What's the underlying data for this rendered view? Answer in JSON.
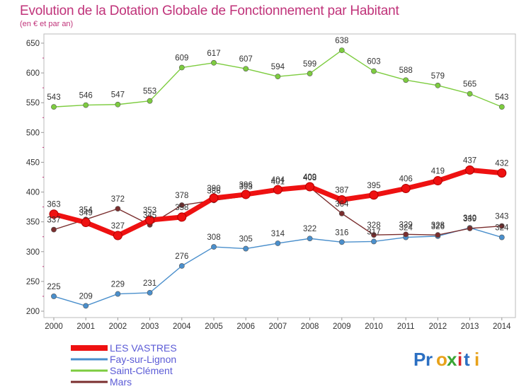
{
  "title": "Evolution de la Dotation Globale de Fonctionnement par Habitant",
  "subtitle": "(en € et par an)",
  "logo": "Proxiti",
  "chart_data": {
    "type": "line",
    "categories": [
      "2000",
      "2001",
      "2002",
      "2003",
      "2004",
      "2005",
      "2006",
      "2007",
      "2008",
      "2009",
      "2010",
      "2011",
      "2012",
      "2013",
      "2014"
    ],
    "ylim": [
      200,
      650
    ],
    "yticks": [
      200,
      250,
      300,
      350,
      400,
      450,
      500,
      550,
      600,
      650
    ],
    "grid": false,
    "legend_position": "bottom-left",
    "series": [
      {
        "name": "LES VASTRES",
        "color": "#ee1111",
        "highlight": true,
        "values": [
          363,
          349,
          327,
          353,
          358,
          390,
          396,
          404,
          409,
          387,
          395,
          406,
          419,
          437,
          432
        ]
      },
      {
        "name": "Fay-sur-Lignon",
        "color": "#4a8fcc",
        "values": [
          225,
          209,
          229,
          231,
          276,
          308,
          305,
          314,
          322,
          316,
          317,
          324,
          326,
          340,
          324
        ]
      },
      {
        "name": "Saint-Clément",
        "color": "#7dcc3f",
        "values": [
          543,
          546,
          547,
          553,
          609,
          617,
          607,
          594,
          599,
          638,
          603,
          588,
          579,
          565,
          543
        ]
      },
      {
        "name": "Mars",
        "color": "#7a2e2e",
        "values": [
          337,
          354,
          372,
          345,
          378,
          386,
          393,
          401,
          408,
          364,
          328,
          329,
          328,
          339,
          343
        ]
      }
    ]
  }
}
